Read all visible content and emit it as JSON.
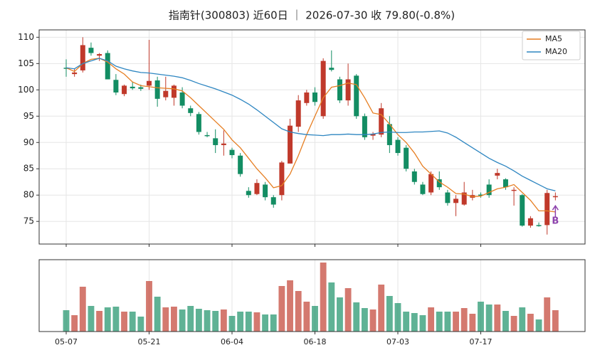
{
  "chart_data": {
    "type": "candlestick",
    "title": "指南针(300803) 近60日 ｜ 2026-07-30 收 79.80(-0.8%)",
    "categories": [
      "05-07",
      null,
      null,
      null,
      null,
      null,
      null,
      null,
      null,
      null,
      "05-21",
      null,
      null,
      null,
      null,
      null,
      null,
      null,
      null,
      null,
      "06-04",
      null,
      null,
      null,
      null,
      null,
      null,
      null,
      null,
      null,
      "06-18",
      null,
      null,
      null,
      null,
      null,
      null,
      null,
      null,
      null,
      "07-03",
      null,
      null,
      null,
      null,
      null,
      null,
      null,
      null,
      null,
      "07-17",
      null,
      null,
      null,
      null,
      null,
      null,
      null,
      null,
      null
    ],
    "open": [
      104.2,
      103,
      103.7,
      108,
      106.5,
      107,
      101.9,
      99.2,
      100.6,
      100.5,
      100.8,
      101.8,
      98.6,
      98.5,
      99.5,
      96.5,
      95.4,
      91.4,
      90.8,
      89.5,
      88.6,
      87.5,
      80.8,
      80.2,
      82,
      79.6,
      80,
      86,
      93,
      97.5,
      99.5,
      95,
      104.2,
      102,
      98,
      102.7,
      95,
      91.3,
      91.5,
      93.5,
      90.5,
      89,
      84.5,
      82,
      80.5,
      83,
      80.5,
      78.5,
      78.2,
      79.5,
      80.1,
      82,
      83.7,
      83,
      80.8,
      80,
      74.2,
      74.3,
      74.3,
      79.6
    ],
    "high": [
      105.8,
      104,
      110,
      109,
      107,
      107.5,
      103,
      101,
      101.5,
      101,
      109.5,
      102.5,
      102.5,
      101,
      100.5,
      97,
      95.8,
      92,
      92.5,
      92.3,
      89,
      88,
      81.5,
      83,
      82.5,
      80,
      86.5,
      94.5,
      99,
      100,
      100.5,
      106,
      107.5,
      102.5,
      105,
      103,
      95.5,
      92,
      97.5,
      95,
      91,
      89.5,
      85,
      82.5,
      84.5,
      84.5,
      81,
      80,
      82.5,
      81,
      80.5,
      83,
      85,
      83.2,
      81.5,
      80.2,
      76,
      74.8,
      81,
      80.5
    ],
    "low": [
      102.5,
      102.5,
      103.3,
      106.5,
      105.5,
      102,
      99,
      98.8,
      100,
      99.8,
      100,
      96.8,
      98,
      97,
      96.5,
      95,
      91.5,
      91,
      88,
      87.5,
      87,
      83.5,
      79.5,
      80,
      79,
      77.6,
      79,
      86,
      92,
      97,
      97,
      94.5,
      103.5,
      97.5,
      97,
      94.5,
      90.5,
      90.5,
      91,
      88,
      87.5,
      84.5,
      82,
      80,
      80,
      81,
      78,
      76,
      78,
      79,
      79.5,
      79.5,
      83,
      81,
      78,
      74,
      73.8,
      74,
      72.5,
      79
    ],
    "close": [
      104,
      103.3,
      108.5,
      107,
      106.8,
      102,
      99.5,
      100.8,
      100.3,
      100.2,
      101.7,
      98.3,
      99.8,
      100.8,
      97,
      95.6,
      92,
      91.2,
      89.5,
      89.8,
      87.6,
      84,
      80,
      82.3,
      79.6,
      78.2,
      86.2,
      93.2,
      98,
      99.5,
      97.7,
      105.5,
      103.8,
      98,
      102,
      95,
      91,
      91.6,
      96.5,
      89.5,
      88,
      85,
      82.5,
      80.2,
      84,
      81.5,
      78.5,
      79.3,
      80.5,
      80,
      79.9,
      80,
      84.2,
      81.5,
      81,
      74.2,
      75.6,
      74.1,
      80.4,
      79.8
    ],
    "up_color": "#c0392b",
    "down_color": "#138d63",
    "series": [
      {
        "name": "MA5",
        "color": "#e67e22",
        "values": [
          104.2,
          103.5,
          105,
          105.8,
          106,
          105.3,
          104,
          103,
          101.5,
          100.8,
          100.6,
          100.4,
          100.3,
          100.2,
          99.8,
          98.5,
          97,
          95.5,
          94,
          92.5,
          90.5,
          89,
          87,
          85,
          83.3,
          81.4,
          81.8,
          84,
          87.5,
          91.5,
          95,
          98.5,
          100.5,
          100.8,
          101.3,
          101,
          98.5,
          95.6,
          95.3,
          93.5,
          91.5,
          90,
          88,
          85.5,
          84,
          82.5,
          81.5,
          80.3,
          80.2,
          79.7,
          79.8,
          80.5,
          81.2,
          81.5,
          82,
          80.5,
          79,
          77,
          77,
          76.8
        ]
      },
      {
        "name": "MA20",
        "color": "#2e86c1",
        "values": [
          104.2,
          104,
          105,
          105.5,
          106,
          105.5,
          104.5,
          104,
          103.6,
          103.3,
          103.2,
          103,
          102.8,
          102.6,
          102.3,
          101.8,
          101.2,
          100.7,
          100.2,
          99.6,
          99,
          98.2,
          97.3,
          96.2,
          95,
          93.8,
          92.6,
          92,
          91.7,
          91.5,
          91.4,
          91.3,
          91.5,
          91.5,
          91.6,
          91.5,
          91.5,
          91.6,
          91.9,
          92,
          91.9,
          91.9,
          92,
          92,
          92.1,
          92.2,
          91.8,
          91,
          90,
          89,
          88,
          87,
          86.2,
          85.5,
          84.6,
          83.6,
          82.8,
          82,
          81.2,
          80.8
        ]
      }
    ],
    "ylim": [
      70.7,
      111.4
    ],
    "yticks": [
      75,
      80,
      85,
      90,
      95,
      100,
      105,
      110
    ],
    "grid": true,
    "legend": "upper right",
    "volume": [
      30,
      23,
      63,
      36,
      29,
      34,
      35,
      28,
      28,
      21,
      71,
      49,
      34,
      35,
      31,
      36,
      32,
      30,
      29,
      31,
      22,
      28,
      28,
      27,
      24,
      24,
      64,
      72,
      57,
      42,
      36,
      97,
      69,
      48,
      61,
      41,
      33,
      31,
      66,
      50,
      40,
      28,
      26,
      23,
      34,
      28,
      28,
      28,
      33,
      25,
      42,
      38,
      38,
      29,
      22,
      34,
      25,
      17,
      48,
      30
    ],
    "volume_ylim": [
      0,
      101
    ],
    "annotations": [
      {
        "text": "B",
        "index": 59,
        "value": 75,
        "color": "#8e44ad"
      }
    ]
  }
}
